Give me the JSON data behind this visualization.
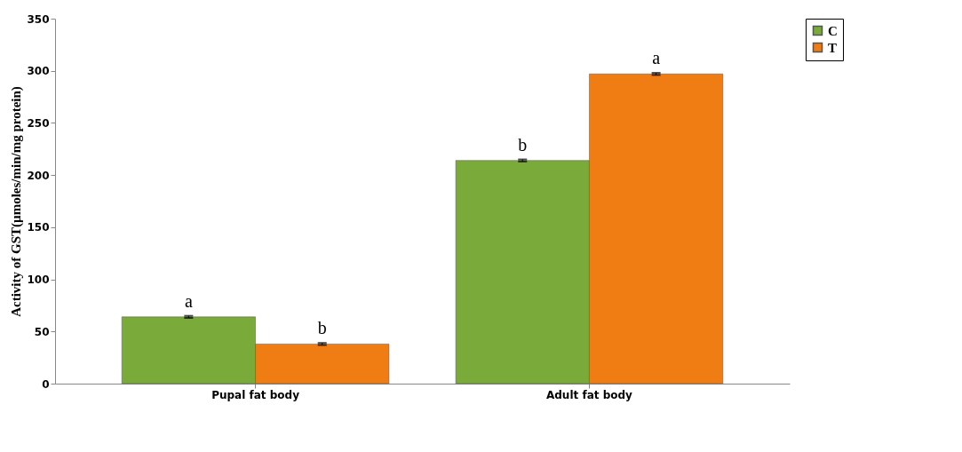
{
  "chart_data": {
    "type": "bar",
    "ylabel": "Activity of GST(µmoles/min/mg protein)",
    "categories": [
      "Pupal fat body",
      "Adult fat body"
    ],
    "series": [
      {
        "name": "C",
        "color": "#7aab3a",
        "values": [
          64,
          214
        ],
        "errors": [
          1,
          1
        ]
      },
      {
        "name": "T",
        "color": "#f07d14",
        "values": [
          38,
          297
        ],
        "errors": [
          1,
          1
        ]
      }
    ],
    "ylim": [
      0,
      350
    ],
    "yticks": [
      0,
      50,
      100,
      150,
      200,
      250,
      300,
      350
    ],
    "grid": false,
    "legend": "top right",
    "annotations": [
      "a",
      "b",
      "b",
      "a"
    ]
  }
}
